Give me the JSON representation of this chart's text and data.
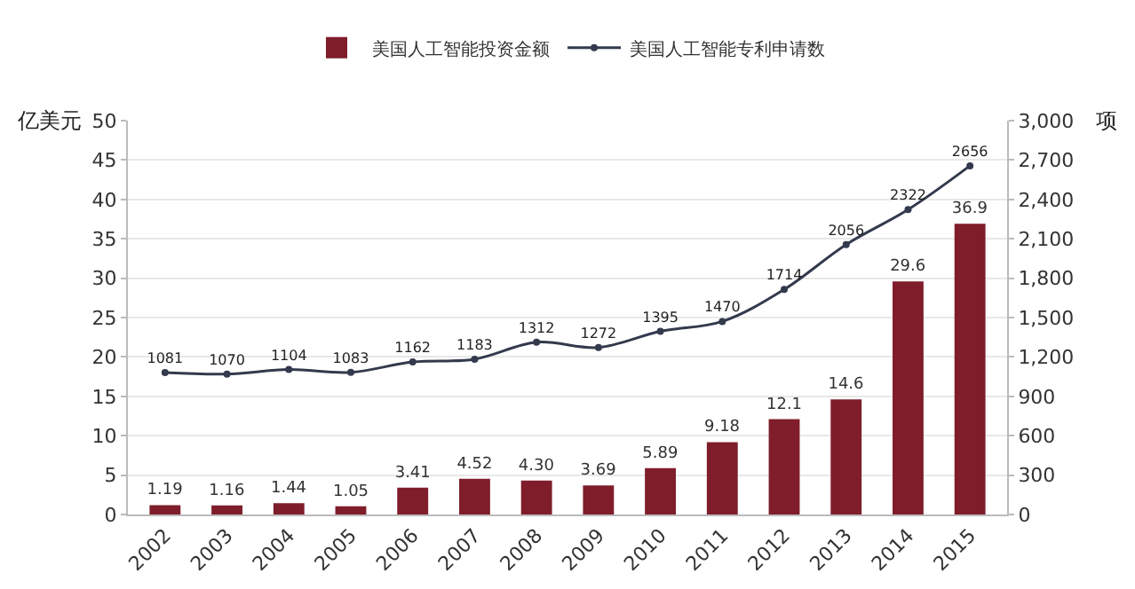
{
  "chart_data": {
    "type": "bar",
    "ylabel": "亿美元",
    "y2label": "项",
    "categories": [
      "2002",
      "2003",
      "2004",
      "2005",
      "2006",
      "2007",
      "2008",
      "2009",
      "2010",
      "2011",
      "2012",
      "2013",
      "2014",
      "2015"
    ],
    "series": [
      {
        "name": "美国人工智能投资金额",
        "color": "#7f1d2b",
        "values": [
          1.19,
          1.16,
          1.44,
          1.05,
          3.41,
          4.52,
          4.3,
          3.69,
          5.89,
          9.18,
          12.1,
          14.6,
          29.6,
          36.9
        ],
        "value_labels": [
          "1.19",
          "1.16",
          "1.44",
          "1.05",
          "3.41",
          "4.52",
          "4.30",
          "3.69",
          "5.89",
          "9.18",
          "12.1",
          "14.6",
          "29.6",
          "36.9"
        ]
      },
      {
        "name": "美国人工智能专利申请数",
        "type": "line",
        "axis": "y2",
        "color": "#333a4d",
        "marker": "circle",
        "line_style": "solid",
        "values": [
          1081,
          1070,
          1104,
          1083,
          1162,
          1183,
          1312,
          1272,
          1395,
          1470,
          1714,
          2056,
          2322,
          2656
        ],
        "value_labels": [
          "1081",
          "1070",
          "1104",
          "1083",
          "1162",
          "1183",
          "1312",
          "1272",
          "1395",
          "1470",
          "1714",
          "2056",
          "2322",
          "2656"
        ]
      }
    ],
    "ylim": [
      0,
      50
    ],
    "yticks": [
      0,
      5,
      10,
      15,
      20,
      25,
      30,
      35,
      40,
      45,
      50
    ],
    "y2lim": [
      0,
      3000
    ],
    "y2ticks": [
      {
        "value": 0,
        "label": "0"
      },
      {
        "value": 300,
        "label": "300"
      },
      {
        "value": 600,
        "label": "600"
      },
      {
        "value": 900,
        "label": "900"
      },
      {
        "value": 1200,
        "label": "1,200"
      },
      {
        "value": 1500,
        "label": "1,500"
      },
      {
        "value": 1800,
        "label": "1,800"
      },
      {
        "value": 2100,
        "label": "2,100"
      },
      {
        "value": 2400,
        "label": "2,400"
      },
      {
        "value": 2700,
        "label": "2,700"
      },
      {
        "value": 3000,
        "label": "3,000"
      }
    ],
    "grid": "y",
    "legend": "top"
  }
}
